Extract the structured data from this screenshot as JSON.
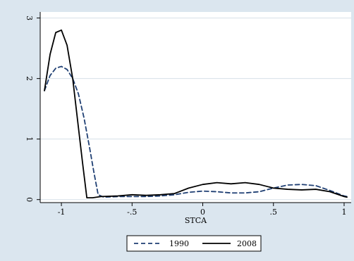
{
  "chart_data": {
    "type": "line",
    "title": "",
    "xlabel": "STCA",
    "ylabel": "",
    "xlim": [
      -1.15,
      1.05
    ],
    "ylim": [
      -0.05,
      3.1
    ],
    "x_ticks": [
      -1,
      -0.5,
      0,
      0.5,
      1
    ],
    "x_tick_labels": [
      "-1",
      "-.5",
      "0",
      ".5",
      "1"
    ],
    "y_ticks": [
      0,
      1,
      2,
      3
    ],
    "y_tick_labels": [
      "0",
      "1",
      "2",
      "3"
    ],
    "grid": "horizontal",
    "legend_position": "bottom",
    "colors": {
      "background": "#dbe6ef",
      "plot_background": "#ffffff",
      "grid": "#d6e0e8",
      "series_1990": "#1f3f73",
      "series_2008": "#000000"
    },
    "series": [
      {
        "name": "1990",
        "style": "dashed",
        "color": "#1f3f73",
        "points": [
          [
            -1.12,
            1.8
          ],
          [
            -1.08,
            2.05
          ],
          [
            -1.04,
            2.17
          ],
          [
            -1.0,
            2.2
          ],
          [
            -0.96,
            2.15
          ],
          [
            -0.92,
            2.0
          ],
          [
            -0.88,
            1.75
          ],
          [
            -0.84,
            1.35
          ],
          [
            -0.8,
            0.85
          ],
          [
            -0.77,
            0.45
          ],
          [
            -0.74,
            0.08
          ],
          [
            -0.7,
            0.04
          ],
          [
            -0.6,
            0.05
          ],
          [
            -0.5,
            0.05
          ],
          [
            -0.4,
            0.05
          ],
          [
            -0.3,
            0.06
          ],
          [
            -0.2,
            0.08
          ],
          [
            -0.1,
            0.12
          ],
          [
            0.0,
            0.14
          ],
          [
            0.1,
            0.13
          ],
          [
            0.2,
            0.11
          ],
          [
            0.3,
            0.11
          ],
          [
            0.4,
            0.13
          ],
          [
            0.5,
            0.19
          ],
          [
            0.6,
            0.24
          ],
          [
            0.7,
            0.25
          ],
          [
            0.8,
            0.23
          ],
          [
            0.9,
            0.15
          ],
          [
            1.0,
            0.06
          ],
          [
            1.02,
            0.05
          ]
        ]
      },
      {
        "name": "2008",
        "style": "solid",
        "color": "#000000",
        "points": [
          [
            -1.12,
            1.8
          ],
          [
            -1.08,
            2.4
          ],
          [
            -1.04,
            2.76
          ],
          [
            -1.0,
            2.8
          ],
          [
            -0.96,
            2.55
          ],
          [
            -0.92,
            2.0
          ],
          [
            -0.88,
            1.2
          ],
          [
            -0.85,
            0.6
          ],
          [
            -0.82,
            0.03
          ],
          [
            -0.78,
            0.03
          ],
          [
            -0.72,
            0.05
          ],
          [
            -0.6,
            0.06
          ],
          [
            -0.5,
            0.08
          ],
          [
            -0.4,
            0.07
          ],
          [
            -0.3,
            0.08
          ],
          [
            -0.2,
            0.1
          ],
          [
            -0.1,
            0.19
          ],
          [
            0.0,
            0.25
          ],
          [
            0.1,
            0.28
          ],
          [
            0.2,
            0.26
          ],
          [
            0.3,
            0.28
          ],
          [
            0.4,
            0.25
          ],
          [
            0.5,
            0.19
          ],
          [
            0.6,
            0.17
          ],
          [
            0.7,
            0.16
          ],
          [
            0.8,
            0.17
          ],
          [
            0.9,
            0.13
          ],
          [
            1.0,
            0.05
          ],
          [
            1.02,
            0.04
          ]
        ]
      }
    ]
  }
}
